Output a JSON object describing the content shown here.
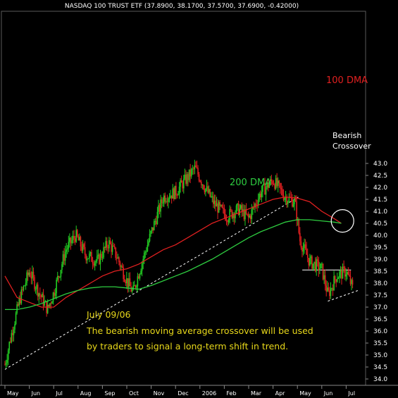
{
  "chart_data": {
    "type": "candlestick",
    "title": "NASDAQ 100 TRUST ETF (37.8900, 38.1700, 37.5700, 37.6900, -0.42000)",
    "ylim": [
      33.8,
      43.3
    ],
    "y_ticks": [
      "43.0",
      "42.5",
      "42.0",
      "41.5",
      "41.0",
      "40.5",
      "40.0",
      "39.5",
      "39.0",
      "38.5",
      "38.0",
      "37.5",
      "37.0",
      "36.5",
      "36.0",
      "35.5",
      "35.0",
      "34.5",
      "34.0"
    ],
    "x_ticks": [
      "May",
      "Jun",
      "Jul",
      "Aug",
      "Sep",
      "Oct",
      "Nov",
      "Dec",
      "2006",
      "Feb",
      "Mar",
      "Apr",
      "May",
      "Jun",
      "Jul"
    ],
    "price_path": [
      {
        "m": 0.0,
        "v": 34.6
      },
      {
        "m": 0.25,
        "v": 35.8
      },
      {
        "m": 0.6,
        "v": 37.3
      },
      {
        "m": 1.0,
        "v": 38.5
      },
      {
        "m": 1.4,
        "v": 37.6
      },
      {
        "m": 1.75,
        "v": 36.9
      },
      {
        "m": 2.0,
        "v": 37.6
      },
      {
        "m": 2.5,
        "v": 39.4
      },
      {
        "m": 2.9,
        "v": 40.0
      },
      {
        "m": 3.3,
        "v": 39.2
      },
      {
        "m": 3.8,
        "v": 38.9
      },
      {
        "m": 4.25,
        "v": 39.7
      },
      {
        "m": 4.6,
        "v": 39.1
      },
      {
        "m": 5.0,
        "v": 38.1
      },
      {
        "m": 5.25,
        "v": 37.6
      },
      {
        "m": 5.6,
        "v": 38.8
      },
      {
        "m": 6.0,
        "v": 40.1
      },
      {
        "m": 6.5,
        "v": 41.6
      },
      {
        "m": 7.0,
        "v": 41.8
      },
      {
        "m": 7.4,
        "v": 42.3
      },
      {
        "m": 7.8,
        "v": 42.8
      },
      {
        "m": 8.2,
        "v": 42.0
      },
      {
        "m": 8.6,
        "v": 41.3
      },
      {
        "m": 9.1,
        "v": 40.8
      },
      {
        "m": 9.6,
        "v": 41.1
      },
      {
        "m": 10.0,
        "v": 40.7
      },
      {
        "m": 10.5,
        "v": 41.8
      },
      {
        "m": 11.0,
        "v": 42.3
      },
      {
        "m": 11.5,
        "v": 41.6
      },
      {
        "m": 11.9,
        "v": 41.4
      },
      {
        "m": 12.1,
        "v": 39.8
      },
      {
        "m": 12.5,
        "v": 38.9
      },
      {
        "m": 13.0,
        "v": 38.6
      },
      {
        "m": 13.25,
        "v": 37.5
      },
      {
        "m": 13.6,
        "v": 38.3
      },
      {
        "m": 14.0,
        "v": 38.5
      },
      {
        "m": 14.3,
        "v": 37.7
      }
    ],
    "series": [
      {
        "name": "100 DMA",
        "color": "#e02020",
        "points": [
          {
            "m": 0.0,
            "v": 38.3
          },
          {
            "m": 0.5,
            "v": 37.4
          },
          {
            "m": 1.0,
            "v": 37.2
          },
          {
            "m": 1.5,
            "v": 37.0
          },
          {
            "m": 2.0,
            "v": 37.0
          },
          {
            "m": 2.5,
            "v": 37.4
          },
          {
            "m": 3.0,
            "v": 37.7
          },
          {
            "m": 3.5,
            "v": 38.0
          },
          {
            "m": 4.0,
            "v": 38.3
          },
          {
            "m": 4.5,
            "v": 38.5
          },
          {
            "m": 5.0,
            "v": 38.6
          },
          {
            "m": 5.5,
            "v": 38.8
          },
          {
            "m": 6.0,
            "v": 39.1
          },
          {
            "m": 6.5,
            "v": 39.4
          },
          {
            "m": 7.0,
            "v": 39.6
          },
          {
            "m": 7.5,
            "v": 39.9
          },
          {
            "m": 8.0,
            "v": 40.2
          },
          {
            "m": 8.5,
            "v": 40.5
          },
          {
            "m": 9.0,
            "v": 40.7
          },
          {
            "m": 9.5,
            "v": 40.9
          },
          {
            "m": 10.0,
            "v": 41.1
          },
          {
            "m": 10.5,
            "v": 41.3
          },
          {
            "m": 11.0,
            "v": 41.5
          },
          {
            "m": 11.5,
            "v": 41.6
          },
          {
            "m": 12.0,
            "v": 41.55
          },
          {
            "m": 12.5,
            "v": 41.4
          },
          {
            "m": 13.0,
            "v": 41.0
          },
          {
            "m": 13.5,
            "v": 40.7
          },
          {
            "m": 13.8,
            "v": 40.5
          }
        ]
      },
      {
        "name": "200 DMA",
        "color": "#2ecc40",
        "points": [
          {
            "m": 0.0,
            "v": 36.9
          },
          {
            "m": 0.5,
            "v": 36.9
          },
          {
            "m": 1.0,
            "v": 37.0
          },
          {
            "m": 1.5,
            "v": 37.15
          },
          {
            "m": 2.0,
            "v": 37.35
          },
          {
            "m": 2.5,
            "v": 37.55
          },
          {
            "m": 3.0,
            "v": 37.7
          },
          {
            "m": 3.5,
            "v": 37.8
          },
          {
            "m": 4.0,
            "v": 37.85
          },
          {
            "m": 4.5,
            "v": 37.85
          },
          {
            "m": 5.0,
            "v": 37.8
          },
          {
            "m": 5.5,
            "v": 37.75
          },
          {
            "m": 6.0,
            "v": 37.9
          },
          {
            "m": 6.5,
            "v": 38.1
          },
          {
            "m": 7.0,
            "v": 38.3
          },
          {
            "m": 7.5,
            "v": 38.5
          },
          {
            "m": 8.0,
            "v": 38.75
          },
          {
            "m": 8.5,
            "v": 39.0
          },
          {
            "m": 9.0,
            "v": 39.3
          },
          {
            "m": 9.5,
            "v": 39.6
          },
          {
            "m": 10.0,
            "v": 39.9
          },
          {
            "m": 10.5,
            "v": 40.15
          },
          {
            "m": 11.0,
            "v": 40.35
          },
          {
            "m": 11.5,
            "v": 40.55
          },
          {
            "m": 12.0,
            "v": 40.65
          },
          {
            "m": 12.5,
            "v": 40.65
          },
          {
            "m": 13.0,
            "v": 40.6
          },
          {
            "m": 13.5,
            "v": 40.55
          },
          {
            "m": 13.8,
            "v": 40.5
          }
        ]
      }
    ],
    "annotations": {
      "dma100_label": "100 DMA",
      "dma200_label": "200 DMA",
      "crossover_line1": "Bearish",
      "crossover_line2": "Crossover",
      "note_line1": "July 09/06",
      "note_line2": "The bearish moving average crossover will be used",
      "note_line3": "by traders to signal a long-term shift in trend."
    },
    "trendlines": [
      {
        "style": "dashed",
        "color": "#ffffff",
        "from": {
          "m": 0.0,
          "v": 34.4
        },
        "to": {
          "m": 12.05,
          "v": 41.6
        }
      },
      {
        "style": "solid",
        "color": "#ffffff",
        "from": {
          "m": 12.2,
          "v": 38.55
        },
        "to": {
          "m": 14.2,
          "v": 38.55
        }
      },
      {
        "style": "dashed",
        "color": "#ffffff",
        "from": {
          "m": 13.25,
          "v": 37.25
        },
        "to": {
          "m": 14.5,
          "v": 37.7
        }
      }
    ],
    "crossover_marker": {
      "m": 13.85,
      "v": 40.6
    }
  }
}
